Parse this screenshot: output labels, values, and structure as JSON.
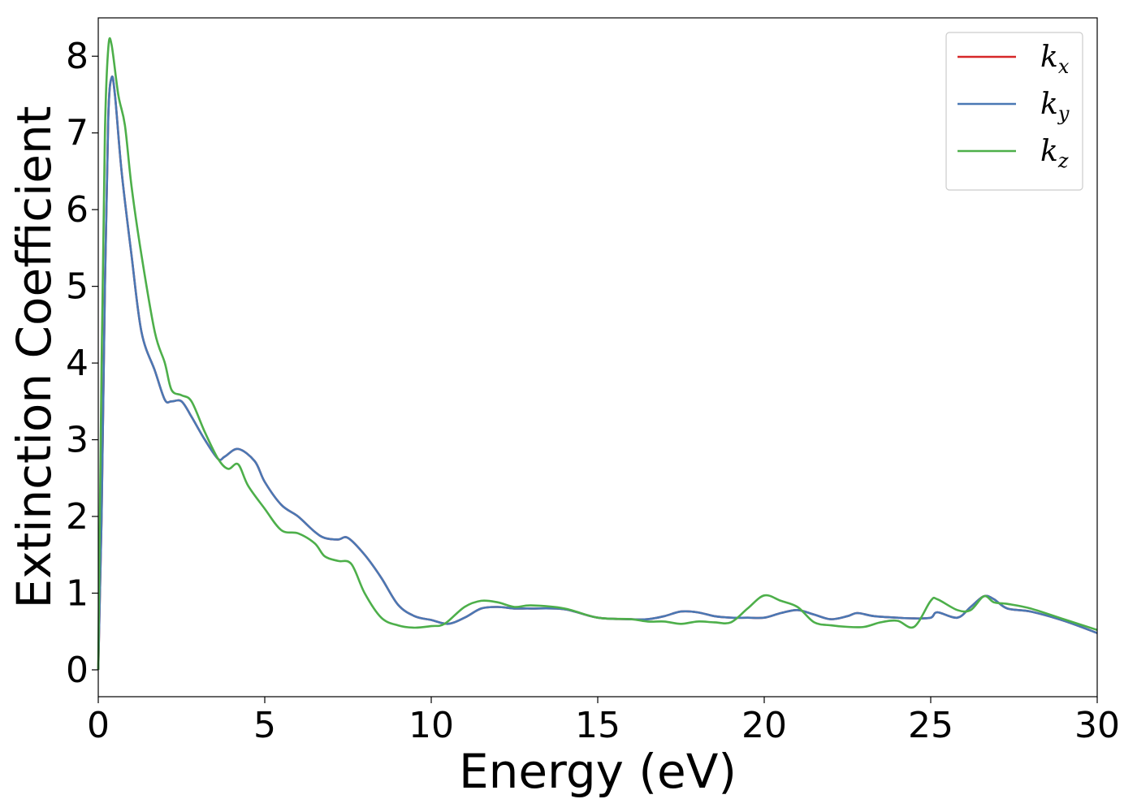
{
  "chart_data": {
    "type": "line",
    "xlabel": "Energy (eV)",
    "ylabel": "Extinction Coefficient",
    "xlim": [
      0,
      30
    ],
    "ylim": [
      -0.35,
      8.5
    ],
    "xticks": [
      0,
      5,
      10,
      15,
      20,
      25,
      30
    ],
    "yticks": [
      0,
      1,
      2,
      3,
      4,
      5,
      6,
      7,
      8
    ],
    "grid": false,
    "legend_position": "top-right",
    "series": [
      {
        "name": "k_x",
        "legend_base": "k",
        "legend_sub": "x",
        "color": "#d62728",
        "x": [
          0,
          0.1,
          0.2,
          0.3,
          0.4,
          0.5,
          0.7,
          1.0,
          1.3,
          1.7,
          2.0,
          2.2,
          2.5,
          2.8,
          3.2,
          3.6,
          3.8,
          4.2,
          4.7,
          5.0,
          5.5,
          6.0,
          6.5,
          6.8,
          7.2,
          7.5,
          8.0,
          8.5,
          9.0,
          9.5,
          10.0,
          10.5,
          11.0,
          11.5,
          12.0,
          12.5,
          13.0,
          14.0,
          15.0,
          16.0,
          16.5,
          17.0,
          17.5,
          18.0,
          18.5,
          19.0,
          19.5,
          20.0,
          20.5,
          21.0,
          21.5,
          22.0,
          22.5,
          22.8,
          23.3,
          24.0,
          24.5,
          25.0,
          25.2,
          25.8,
          26.2,
          26.6,
          26.9,
          27.3,
          28.0,
          29.0,
          30.0
        ],
        "y": [
          0.0,
          2.0,
          5.0,
          7.2,
          7.72,
          7.5,
          6.5,
          5.4,
          4.4,
          3.9,
          3.52,
          3.5,
          3.5,
          3.3,
          3.0,
          2.75,
          2.78,
          2.88,
          2.72,
          2.45,
          2.15,
          2.0,
          1.8,
          1.72,
          1.7,
          1.72,
          1.5,
          1.2,
          0.85,
          0.7,
          0.65,
          0.6,
          0.68,
          0.8,
          0.82,
          0.8,
          0.8,
          0.79,
          0.68,
          0.66,
          0.66,
          0.7,
          0.76,
          0.75,
          0.7,
          0.68,
          0.68,
          0.68,
          0.74,
          0.78,
          0.72,
          0.66,
          0.7,
          0.74,
          0.7,
          0.68,
          0.67,
          0.68,
          0.75,
          0.68,
          0.82,
          0.96,
          0.92,
          0.8,
          0.76,
          0.64,
          0.48
        ]
      },
      {
        "name": "k_y",
        "legend_base": "k",
        "legend_sub": "y",
        "color": "#4a78b4",
        "x": [
          0,
          0.1,
          0.2,
          0.3,
          0.4,
          0.5,
          0.7,
          1.0,
          1.3,
          1.7,
          2.0,
          2.2,
          2.5,
          2.8,
          3.2,
          3.6,
          3.8,
          4.2,
          4.7,
          5.0,
          5.5,
          6.0,
          6.5,
          6.8,
          7.2,
          7.5,
          8.0,
          8.5,
          9.0,
          9.5,
          10.0,
          10.5,
          11.0,
          11.5,
          12.0,
          12.5,
          13.0,
          14.0,
          15.0,
          16.0,
          16.5,
          17.0,
          17.5,
          18.0,
          18.5,
          19.0,
          19.5,
          20.0,
          20.5,
          21.0,
          21.5,
          22.0,
          22.5,
          22.8,
          23.3,
          24.0,
          24.5,
          25.0,
          25.2,
          25.8,
          26.2,
          26.6,
          26.9,
          27.3,
          28.0,
          29.0,
          30.0
        ],
        "y": [
          0.0,
          2.0,
          5.0,
          7.2,
          7.72,
          7.5,
          6.5,
          5.4,
          4.4,
          3.9,
          3.52,
          3.5,
          3.5,
          3.3,
          3.0,
          2.75,
          2.78,
          2.88,
          2.72,
          2.45,
          2.15,
          2.0,
          1.8,
          1.72,
          1.7,
          1.72,
          1.5,
          1.2,
          0.85,
          0.7,
          0.65,
          0.6,
          0.68,
          0.8,
          0.82,
          0.8,
          0.8,
          0.79,
          0.68,
          0.66,
          0.66,
          0.7,
          0.76,
          0.75,
          0.7,
          0.68,
          0.68,
          0.68,
          0.74,
          0.78,
          0.72,
          0.66,
          0.7,
          0.74,
          0.7,
          0.68,
          0.67,
          0.68,
          0.75,
          0.68,
          0.82,
          0.96,
          0.92,
          0.8,
          0.76,
          0.64,
          0.48
        ]
      },
      {
        "name": "k_z",
        "legend_base": "k",
        "legend_sub": "z",
        "color": "#4daf4a",
        "x": [
          0,
          0.1,
          0.2,
          0.3,
          0.4,
          0.6,
          0.8,
          1.0,
          1.3,
          1.7,
          2.0,
          2.2,
          2.5,
          2.8,
          3.2,
          3.6,
          3.9,
          4.2,
          4.5,
          5.0,
          5.5,
          6.0,
          6.5,
          6.8,
          7.2,
          7.6,
          8.0,
          8.5,
          9.0,
          9.5,
          10.0,
          10.4,
          11.0,
          11.5,
          12.0,
          12.5,
          13.0,
          14.0,
          15.0,
          16.0,
          16.5,
          17.0,
          17.5,
          18.0,
          18.5,
          19.0,
          19.5,
          20.0,
          20.5,
          21.0,
          21.5,
          22.0,
          22.5,
          23.0,
          23.5,
          24.0,
          24.5,
          25.0,
          25.2,
          25.8,
          26.2,
          26.6,
          26.9,
          27.3,
          28.0,
          29.0,
          30.0
        ],
        "y": [
          0.0,
          4.0,
          7.0,
          8.1,
          8.15,
          7.5,
          7.1,
          6.3,
          5.4,
          4.4,
          4.0,
          3.65,
          3.58,
          3.5,
          3.1,
          2.75,
          2.62,
          2.68,
          2.4,
          2.1,
          1.82,
          1.78,
          1.65,
          1.48,
          1.42,
          1.38,
          1.0,
          0.68,
          0.58,
          0.55,
          0.57,
          0.6,
          0.82,
          0.9,
          0.88,
          0.82,
          0.84,
          0.8,
          0.68,
          0.66,
          0.63,
          0.63,
          0.6,
          0.63,
          0.62,
          0.62,
          0.8,
          0.97,
          0.9,
          0.82,
          0.62,
          0.58,
          0.56,
          0.56,
          0.62,
          0.64,
          0.56,
          0.9,
          0.92,
          0.78,
          0.78,
          0.96,
          0.88,
          0.86,
          0.8,
          0.66,
          0.52
        ]
      }
    ]
  }
}
